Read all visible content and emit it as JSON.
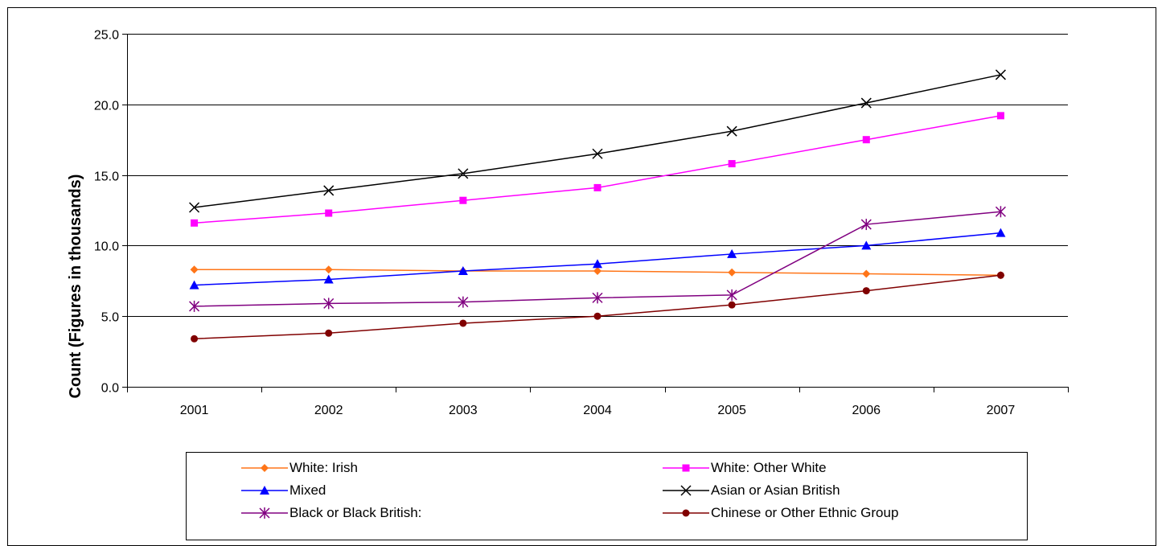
{
  "chart_data": {
    "type": "line",
    "title": "",
    "xlabel": "",
    "ylabel": "Count (Figures in thousands)",
    "categories": [
      "2001",
      "2002",
      "2003",
      "2004",
      "2005",
      "2006",
      "2007"
    ],
    "ylim": [
      0,
      25
    ],
    "yticks": [
      "0.0",
      "5.0",
      "10.0",
      "15.0",
      "20.0",
      "25.0"
    ],
    "grid": "horizontal",
    "legend_position": "bottom",
    "series": [
      {
        "name": "White: Irish",
        "color": "#ff7518",
        "marker": "diamond",
        "values": [
          8.3,
          8.3,
          8.2,
          8.2,
          8.1,
          8.0,
          7.9
        ]
      },
      {
        "name": "White: Other White",
        "color": "#ff00ff",
        "marker": "square",
        "values": [
          11.6,
          12.3,
          13.2,
          14.1,
          15.8,
          17.5,
          19.2
        ]
      },
      {
        "name": "Mixed",
        "color": "#0000ff",
        "marker": "triangle",
        "values": [
          7.2,
          7.6,
          8.2,
          8.7,
          9.4,
          10.0,
          10.9
        ]
      },
      {
        "name": "Asian or Asian British",
        "color": "#000000",
        "marker": "x",
        "values": [
          12.7,
          13.9,
          15.1,
          16.5,
          18.1,
          20.1,
          22.1
        ]
      },
      {
        "name": "Black or Black British:",
        "color": "#800080",
        "marker": "star",
        "values": [
          5.7,
          5.9,
          6.0,
          6.3,
          6.5,
          11.5,
          12.4
        ]
      },
      {
        "name": "Chinese or Other Ethnic Group",
        "color": "#800000",
        "marker": "circle",
        "values": [
          3.4,
          3.8,
          4.5,
          5.0,
          5.8,
          6.8,
          7.9
        ]
      }
    ]
  }
}
